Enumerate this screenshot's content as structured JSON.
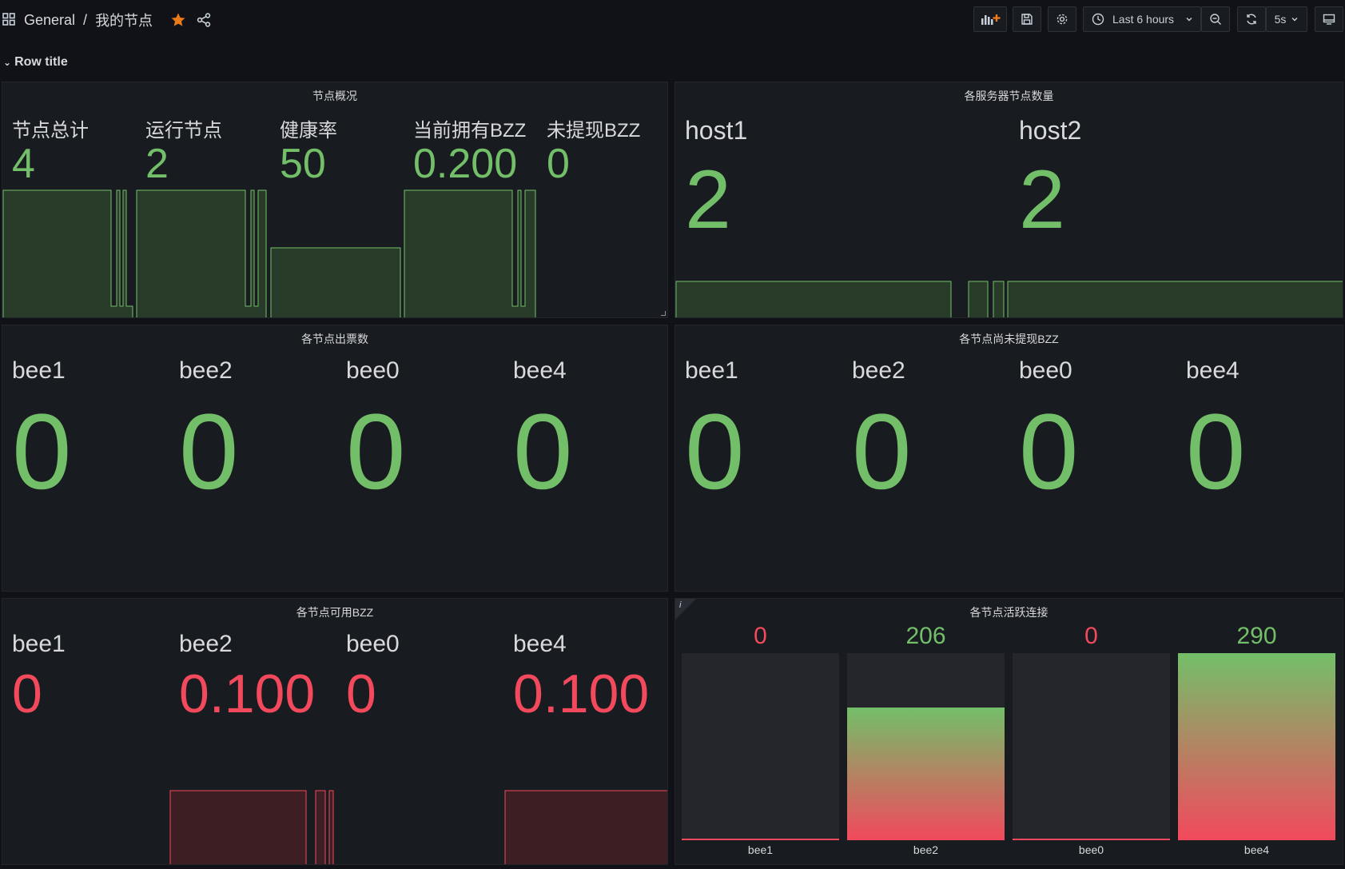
{
  "nav": {
    "folder": "General",
    "separator": "/",
    "dashboard": "我的节点",
    "time_range": "Last 6 hours",
    "refresh": "5s"
  },
  "row": {
    "title": "Row title"
  },
  "overview": {
    "title": "节点概况",
    "stats": [
      {
        "label": "节点总计",
        "value": "4"
      },
      {
        "label": "运行节点",
        "value": "2"
      },
      {
        "label": "健康率",
        "value": "50"
      },
      {
        "label": "当前拥有BZZ",
        "value": "0.200"
      },
      {
        "label": "未提现BZZ",
        "value": "0"
      }
    ]
  },
  "servers": {
    "title": "各服务器节点数量",
    "stats": [
      {
        "label": "host1",
        "value": "2"
      },
      {
        "label": "host2",
        "value": "2"
      }
    ]
  },
  "tickets": {
    "title": "各节点出票数",
    "stats": [
      {
        "label": "bee1",
        "value": "0"
      },
      {
        "label": "bee2",
        "value": "0"
      },
      {
        "label": "bee0",
        "value": "0"
      },
      {
        "label": "bee4",
        "value": "0"
      }
    ]
  },
  "unwithdrawn": {
    "title": "各节点尚未提现BZZ",
    "stats": [
      {
        "label": "bee1",
        "value": "0"
      },
      {
        "label": "bee2",
        "value": "0"
      },
      {
        "label": "bee0",
        "value": "0"
      },
      {
        "label": "bee4",
        "value": "0"
      }
    ]
  },
  "available": {
    "title": "各节点可用BZZ",
    "stats": [
      {
        "label": "bee1",
        "value": "0"
      },
      {
        "label": "bee2",
        "value": "0.100"
      },
      {
        "label": "bee0",
        "value": "0"
      },
      {
        "label": "bee4",
        "value": "0.100"
      }
    ]
  },
  "connections": {
    "title": "各节点活跃连接",
    "info": "i",
    "max": 290,
    "bars": [
      {
        "label": "bee1",
        "value": "0",
        "num": 0
      },
      {
        "label": "bee2",
        "value": "206",
        "num": 206
      },
      {
        "label": "bee0",
        "value": "0",
        "num": 0
      },
      {
        "label": "bee4",
        "value": "290",
        "num": 290
      }
    ]
  },
  "colors": {
    "green": "#73bf69",
    "red": "#f2495c",
    "panel_bg": "#181b1f",
    "page_bg": "#111217"
  }
}
